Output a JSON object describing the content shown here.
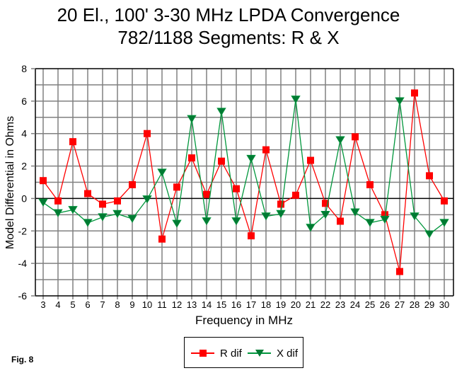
{
  "chart_data": {
    "type": "line",
    "title": "20 El., 100' 3-30 MHz LPDA Convergence",
    "subtitle": "782/1188 Segments:  R & X",
    "xlabel": "Frequency in MHz",
    "ylabel": "Model Differential in Ohms",
    "x": [
      3,
      4,
      5,
      6,
      7,
      8,
      9,
      10,
      11,
      12,
      13,
      14,
      15,
      16,
      17,
      18,
      19,
      20,
      21,
      22,
      23,
      24,
      25,
      26,
      27,
      28,
      29,
      30
    ],
    "x_tick_labels": [
      "3",
      "4",
      "5",
      "6",
      "7",
      "8",
      "9",
      "10",
      "11",
      "12",
      "13",
      "14",
      "15",
      "16",
      "17",
      "18",
      "19",
      "20",
      "21",
      "22",
      "23",
      "24",
      "25",
      "26",
      "27",
      "28",
      "29",
      "30"
    ],
    "ylim": [
      -6,
      8
    ],
    "y_ticks": [
      -6,
      -4,
      -2,
      0,
      2,
      4,
      6,
      8
    ],
    "y_tick_labels": [
      "-6",
      "-4",
      "-2",
      "0",
      "2",
      "4",
      "6",
      "8"
    ],
    "grid": true,
    "legend_position": "bottom-center",
    "series": [
      {
        "name": "R dif",
        "color": "#ff0000",
        "marker": "square",
        "values": [
          1.1,
          -0.15,
          3.5,
          0.3,
          -0.35,
          -0.15,
          0.85,
          4.0,
          -2.5,
          0.7,
          2.5,
          0.25,
          2.3,
          0.6,
          -2.3,
          3.0,
          -0.35,
          0.2,
          2.35,
          -0.3,
          -1.4,
          3.8,
          0.85,
          -1.0,
          -4.5,
          6.5,
          1.4,
          -0.15
        ]
      },
      {
        "name": "X dif",
        "color": "#00963c",
        "marker": "triangle-down",
        "values": [
          -0.25,
          -0.9,
          -0.7,
          -1.5,
          -1.15,
          -0.95,
          -1.25,
          -0.05,
          1.6,
          -1.55,
          4.9,
          -1.4,
          5.35,
          -1.4,
          2.45,
          -1.1,
          -0.95,
          6.1,
          -1.8,
          -1.0,
          3.6,
          -0.85,
          -1.5,
          -1.3,
          6.0,
          -1.1,
          -2.2,
          -1.5
        ]
      }
    ]
  },
  "figure_label": "Fig. 8"
}
